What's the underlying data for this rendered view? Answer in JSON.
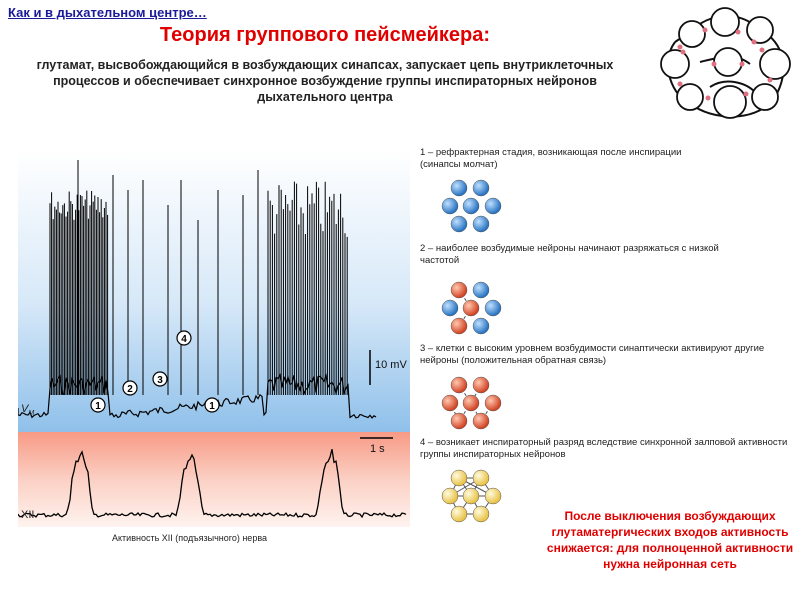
{
  "header": {
    "link": "Как и в дыхательном центре…",
    "title": "Теория группового пейсмейкера:",
    "intro": "глутамат, высвобождающийся в возбуждающих синапсах, запускает цепь внутриклеточных процессов и обеспечивает синхронное возбуждение группы инспираторных нейронов дыхательного центра"
  },
  "recording": {
    "vm_label": "V",
    "vm_sub": "M",
    "xii_label": "XII",
    "scale_voltage": "10 mV",
    "scale_time": "1 s",
    "markers": [
      "1",
      "2",
      "3",
      "4",
      "1"
    ],
    "caption": "Активность  XII (подъязычного) нерва"
  },
  "stages": [
    {
      "text": "1 – рефрактерная стадия, возникающая после инспирации (синапсы молчат)",
      "color": "#2a7fd0"
    },
    {
      "text": "2 – наиболее возбудимые нейроны начинают разряжаться с низкой частотой",
      "color": "#e05030"
    },
    {
      "text": "3 – клетки с высоким уровнем возбудимости синаптически активируют другие нейроны (положительная обратная связь)",
      "color": "#e05030"
    },
    {
      "text": "4 – возникает инспираторный разряд вследствие синхронной залповой активности группы инспираторных нейронов",
      "color": "#f0d060"
    }
  ],
  "note": "После выключения возбуждающих глутаматергических входов активность снижается: для полноценной активности нужна нейронная сеть"
}
